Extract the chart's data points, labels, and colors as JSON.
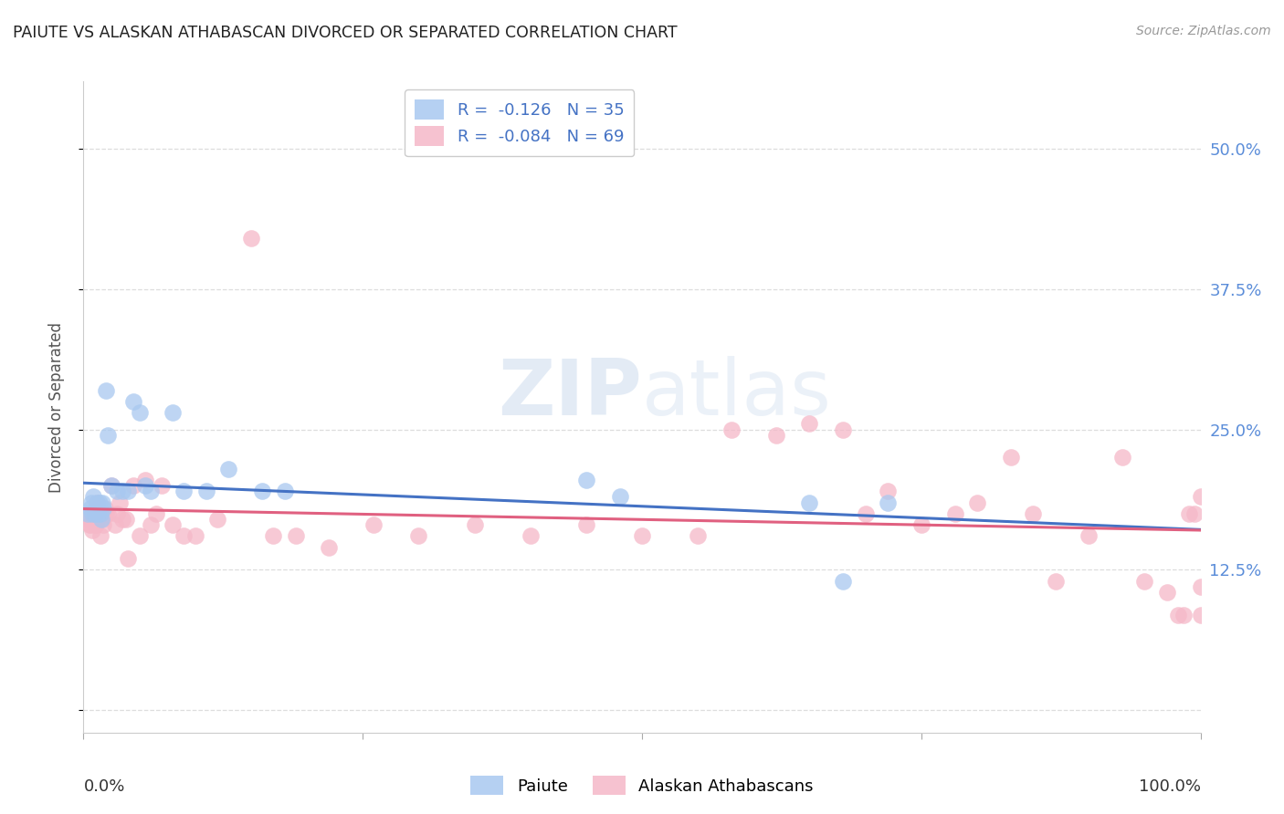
{
  "title": "PAIUTE VS ALASKAN ATHABASCAN DIVORCED OR SEPARATED CORRELATION CHART",
  "source": "Source: ZipAtlas.com",
  "ylabel": "Divorced or Separated",
  "yticks": [
    0.0,
    0.125,
    0.25,
    0.375,
    0.5
  ],
  "ytick_labels": [
    "",
    "12.5%",
    "25.0%",
    "37.5%",
    "50.0%"
  ],
  "xlim": [
    0.0,
    1.0
  ],
  "ylim": [
    -0.02,
    0.56
  ],
  "watermark_zip": "ZIP",
  "watermark_atlas": "atlas",
  "paiute_color": "#A8C8F0",
  "athabascan_color": "#F5B8C8",
  "paiute_line_color": "#4472C4",
  "athabascan_line_color": "#E06080",
  "background_color": "#FFFFFF",
  "grid_color": "#DDDDDD",
  "ytick_color": "#5B8DD9",
  "legend_r1": "R =  -0.126   N = 35",
  "legend_r2": "R =  -0.084   N = 69",
  "bottom_legend_paiute": "Paiute",
  "bottom_legend_athabascan": "Alaskan Athabascans",
  "paiute_x": [
    0.004,
    0.006,
    0.007,
    0.008,
    0.009,
    0.01,
    0.011,
    0.012,
    0.013,
    0.014,
    0.015,
    0.016,
    0.017,
    0.018,
    0.02,
    0.022,
    0.025,
    0.03,
    0.035,
    0.04,
    0.045,
    0.05,
    0.055,
    0.06,
    0.08,
    0.09,
    0.11,
    0.13,
    0.16,
    0.18,
    0.45,
    0.48,
    0.65,
    0.68,
    0.72
  ],
  "paiute_y": [
    0.175,
    0.18,
    0.185,
    0.175,
    0.19,
    0.175,
    0.18,
    0.185,
    0.175,
    0.185,
    0.175,
    0.17,
    0.185,
    0.18,
    0.285,
    0.245,
    0.2,
    0.195,
    0.195,
    0.195,
    0.275,
    0.265,
    0.2,
    0.195,
    0.265,
    0.195,
    0.195,
    0.215,
    0.195,
    0.195,
    0.205,
    0.19,
    0.185,
    0.115,
    0.185
  ],
  "athabascan_x": [
    0.004,
    0.005,
    0.006,
    0.007,
    0.008,
    0.009,
    0.01,
    0.011,
    0.012,
    0.013,
    0.014,
    0.015,
    0.016,
    0.017,
    0.018,
    0.019,
    0.02,
    0.022,
    0.025,
    0.028,
    0.03,
    0.032,
    0.035,
    0.038,
    0.04,
    0.045,
    0.05,
    0.055,
    0.06,
    0.065,
    0.07,
    0.08,
    0.09,
    0.1,
    0.12,
    0.15,
    0.17,
    0.19,
    0.22,
    0.26,
    0.3,
    0.35,
    0.4,
    0.45,
    0.5,
    0.55,
    0.58,
    0.62,
    0.65,
    0.68,
    0.7,
    0.72,
    0.75,
    0.78,
    0.8,
    0.83,
    0.85,
    0.87,
    0.9,
    0.93,
    0.95,
    0.97,
    0.98,
    0.985,
    0.99,
    0.995,
    1.0,
    1.0,
    1.0
  ],
  "athabascan_y": [
    0.17,
    0.165,
    0.165,
    0.17,
    0.16,
    0.17,
    0.165,
    0.165,
    0.185,
    0.18,
    0.17,
    0.155,
    0.175,
    0.17,
    0.165,
    0.18,
    0.175,
    0.175,
    0.2,
    0.165,
    0.175,
    0.185,
    0.17,
    0.17,
    0.135,
    0.2,
    0.155,
    0.205,
    0.165,
    0.175,
    0.2,
    0.165,
    0.155,
    0.155,
    0.17,
    0.42,
    0.155,
    0.155,
    0.145,
    0.165,
    0.155,
    0.165,
    0.155,
    0.165,
    0.155,
    0.155,
    0.25,
    0.245,
    0.255,
    0.25,
    0.175,
    0.195,
    0.165,
    0.175,
    0.185,
    0.225,
    0.175,
    0.115,
    0.155,
    0.225,
    0.115,
    0.105,
    0.085,
    0.085,
    0.175,
    0.175,
    0.19,
    0.11,
    0.085
  ]
}
